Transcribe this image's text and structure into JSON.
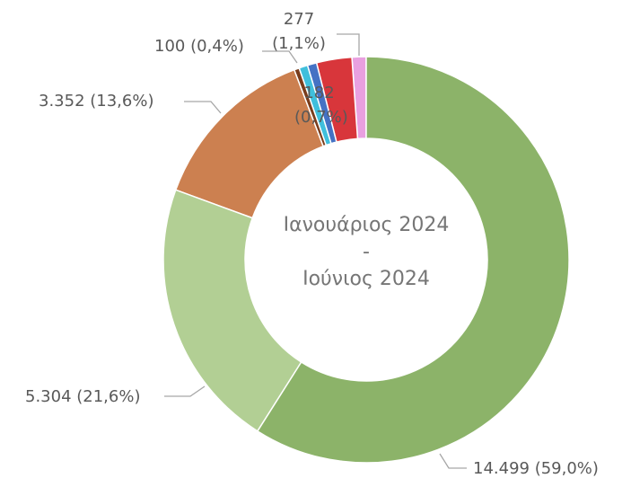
{
  "chart_data": {
    "type": "donut",
    "center_label": [
      "Ιανουάριος 2024",
      "-",
      "Ιούνιος 2024"
    ],
    "values": [
      14499,
      5304,
      3352,
      100,
      170,
      182,
      691,
      277
    ],
    "value_labels": [
      "14.499 (59,0%)",
      "5.304 (21,6%)",
      "3.352 (13,6%)",
      "100 (0,4%)",
      null,
      "182 (0,7%)",
      null,
      "277 (1,1%)"
    ],
    "colors": [
      "#8cb369",
      "#b2cf94",
      "#cc8050",
      "#7a3d1c",
      "#3fbfdc",
      "#4472c4",
      "#d8363b",
      "#e9a0e0"
    ]
  }
}
